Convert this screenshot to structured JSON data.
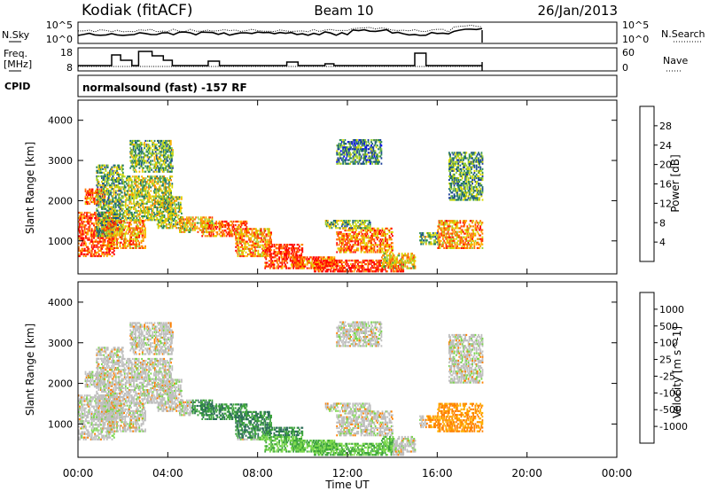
{
  "header": {
    "station": "Kodiak (fitACF)",
    "beam": "Beam 10",
    "date": "26/Jan/2013"
  },
  "noise_panel": {
    "left_label": "N.Sky",
    "right_label": "N.Search",
    "left_ticks": [
      "10^5",
      "10^0"
    ],
    "right_ticks": [
      "10^5",
      "10^0"
    ]
  },
  "freq_panel": {
    "left_label_1": "Freq.",
    "left_label_2": "[MHz]",
    "right_label": "Nave",
    "left_ticks": [
      "18",
      "8"
    ],
    "right_ticks": [
      "60",
      "0"
    ]
  },
  "cpid": {
    "label": "CPID",
    "text": "normalsound (fast) -157 RF"
  },
  "x_axis": {
    "label": "Time UT",
    "ticks": [
      "00:00",
      "04:00",
      "08:00",
      "12:00",
      "16:00",
      "20:00",
      "00:00"
    ]
  },
  "power_colorbar": {
    "label": "Power [dB]",
    "ticks": [
      "28",
      "24",
      "20",
      "16",
      "12",
      "8",
      "4"
    ],
    "colors": [
      "#ff0000",
      "#ff3a00",
      "#ff7a00",
      "#ffb000",
      "#d8d800",
      "#9ad035",
      "#2e8b57",
      "#1f6e6e",
      "#1c3f9a",
      "#0000ff"
    ]
  },
  "velocity_colorbar": {
    "label": "Velocity [m s^-1]",
    "ticks": [
      "1000",
      "500",
      "100",
      "25",
      "-25",
      "-100",
      "-500",
      "-1000"
    ],
    "colors": [
      "#2b3aa0",
      "#2e6e5a",
      "#3ca33c",
      "#7ad84a",
      "#bfbfbf",
      "#c8c8c8",
      "#ffb000",
      "#ff8000",
      "#ff4000",
      "#ff0000"
    ]
  },
  "chart_data": [
    {
      "type": "heatmap",
      "title": "",
      "ylabel": "Slant Range [km]",
      "xlabel": "",
      "ylim": [
        180,
        4500
      ],
      "xlim": [
        "00:00",
        "24:00"
      ],
      "y_ticks": [
        1000,
        2000,
        3000,
        4000
      ],
      "quantity": "Power [dB]",
      "data_extent_hours": [
        0,
        18
      ]
    },
    {
      "type": "heatmap",
      "title": "",
      "ylabel": "Slant Range [km]",
      "xlabel": "Time UT",
      "ylim": [
        180,
        4500
      ],
      "xlim": [
        "00:00",
        "24:00"
      ],
      "y_ticks": [
        1000,
        2000,
        3000,
        4000
      ],
      "quantity": "Velocity [m s^-1]",
      "data_extent_hours": [
        0,
        18
      ]
    }
  ]
}
